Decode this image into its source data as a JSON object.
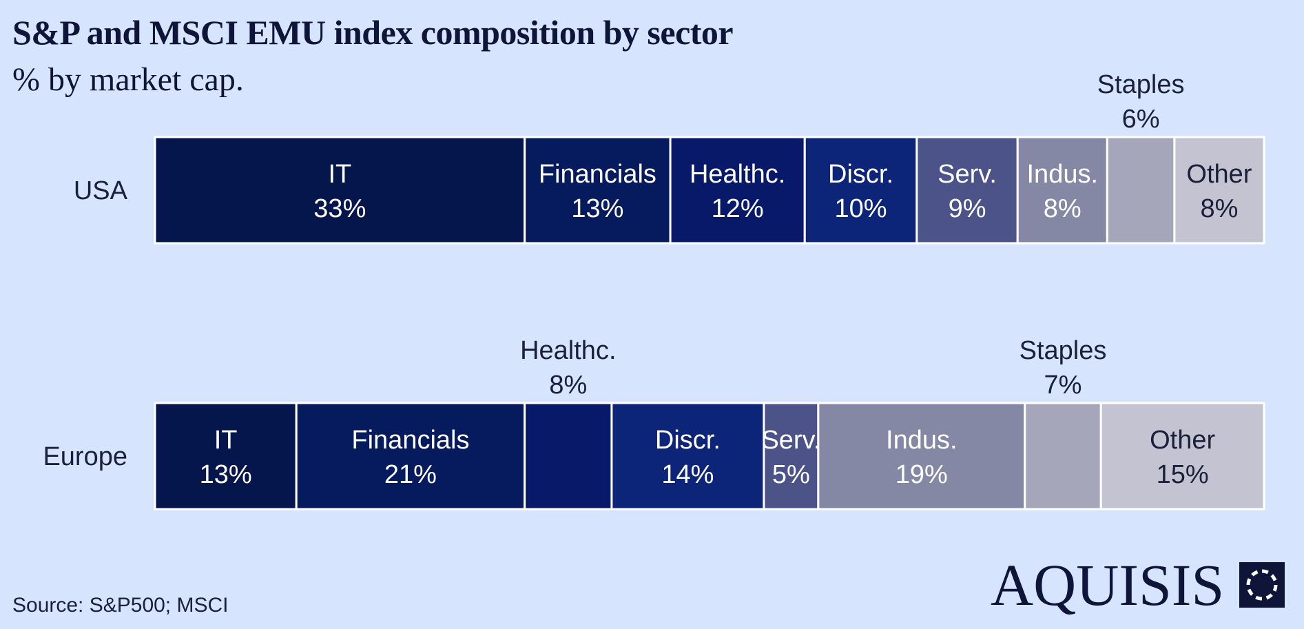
{
  "title": "S&P and MSCI EMU index composition by sector",
  "subtitle": "% by market cap.",
  "source": "Source: S&P500; MSCI",
  "brand": {
    "name": "AQUISIS",
    "icon": "dotted-circle-square-logo"
  },
  "colors": {
    "background": "#d6e4fd",
    "IT": "#05164d",
    "Financials": "#061a5e",
    "Healthc.": "#08196a",
    "Discr.": "#0c2578",
    "Serv.": "#4b5389",
    "Indus.": "#8588a5",
    "Staples": "#a5a6ba",
    "Other": "#c3c3d1"
  },
  "chart_data": {
    "type": "bar",
    "orientation": "horizontal-stacked-100",
    "categories": [
      "USA",
      "Europe"
    ],
    "series": [
      {
        "name": "IT",
        "values": [
          33,
          13
        ],
        "labels": [
          "IT",
          "IT"
        ],
        "value_labels": [
          "33%",
          "13%"
        ],
        "label_position": [
          "inside",
          "inside"
        ]
      },
      {
        "name": "Financials",
        "values": [
          13,
          21
        ],
        "labels": [
          "Financials",
          "Financials"
        ],
        "value_labels": [
          "13%",
          "21%"
        ],
        "label_position": [
          "inside",
          "inside"
        ]
      },
      {
        "name": "Healthc.",
        "values": [
          12,
          8
        ],
        "labels": [
          "Healthc.",
          "Healthc."
        ],
        "value_labels": [
          "12%",
          "8%"
        ],
        "label_position": [
          "inside",
          "above"
        ]
      },
      {
        "name": "Discr.",
        "values": [
          10,
          14
        ],
        "labels": [
          "Discr.",
          "Discr."
        ],
        "value_labels": [
          "10%",
          "14%"
        ],
        "label_position": [
          "inside",
          "inside"
        ]
      },
      {
        "name": "Serv.",
        "values": [
          9,
          5
        ],
        "labels": [
          "Serv.",
          "Serv."
        ],
        "value_labels": [
          "9%",
          "5%"
        ],
        "label_position": [
          "inside",
          "inside"
        ]
      },
      {
        "name": "Indus.",
        "values": [
          8,
          19
        ],
        "labels": [
          "Indus.",
          "Indus."
        ],
        "value_labels": [
          "8%",
          "19%"
        ],
        "label_position": [
          "inside",
          "inside"
        ]
      },
      {
        "name": "Staples",
        "values": [
          6,
          7
        ],
        "labels": [
          "Staples",
          "Staples"
        ],
        "value_labels": [
          "6%",
          "7%"
        ],
        "label_position": [
          "above",
          "above"
        ]
      },
      {
        "name": "Other",
        "values": [
          8,
          15
        ],
        "labels": [
          "Other",
          "Other"
        ],
        "value_labels": [
          "8%",
          "15%"
        ],
        "label_position": [
          "inside",
          "inside"
        ]
      }
    ],
    "xlim": [
      0,
      100
    ],
    "grid": false,
    "legend": "none"
  }
}
